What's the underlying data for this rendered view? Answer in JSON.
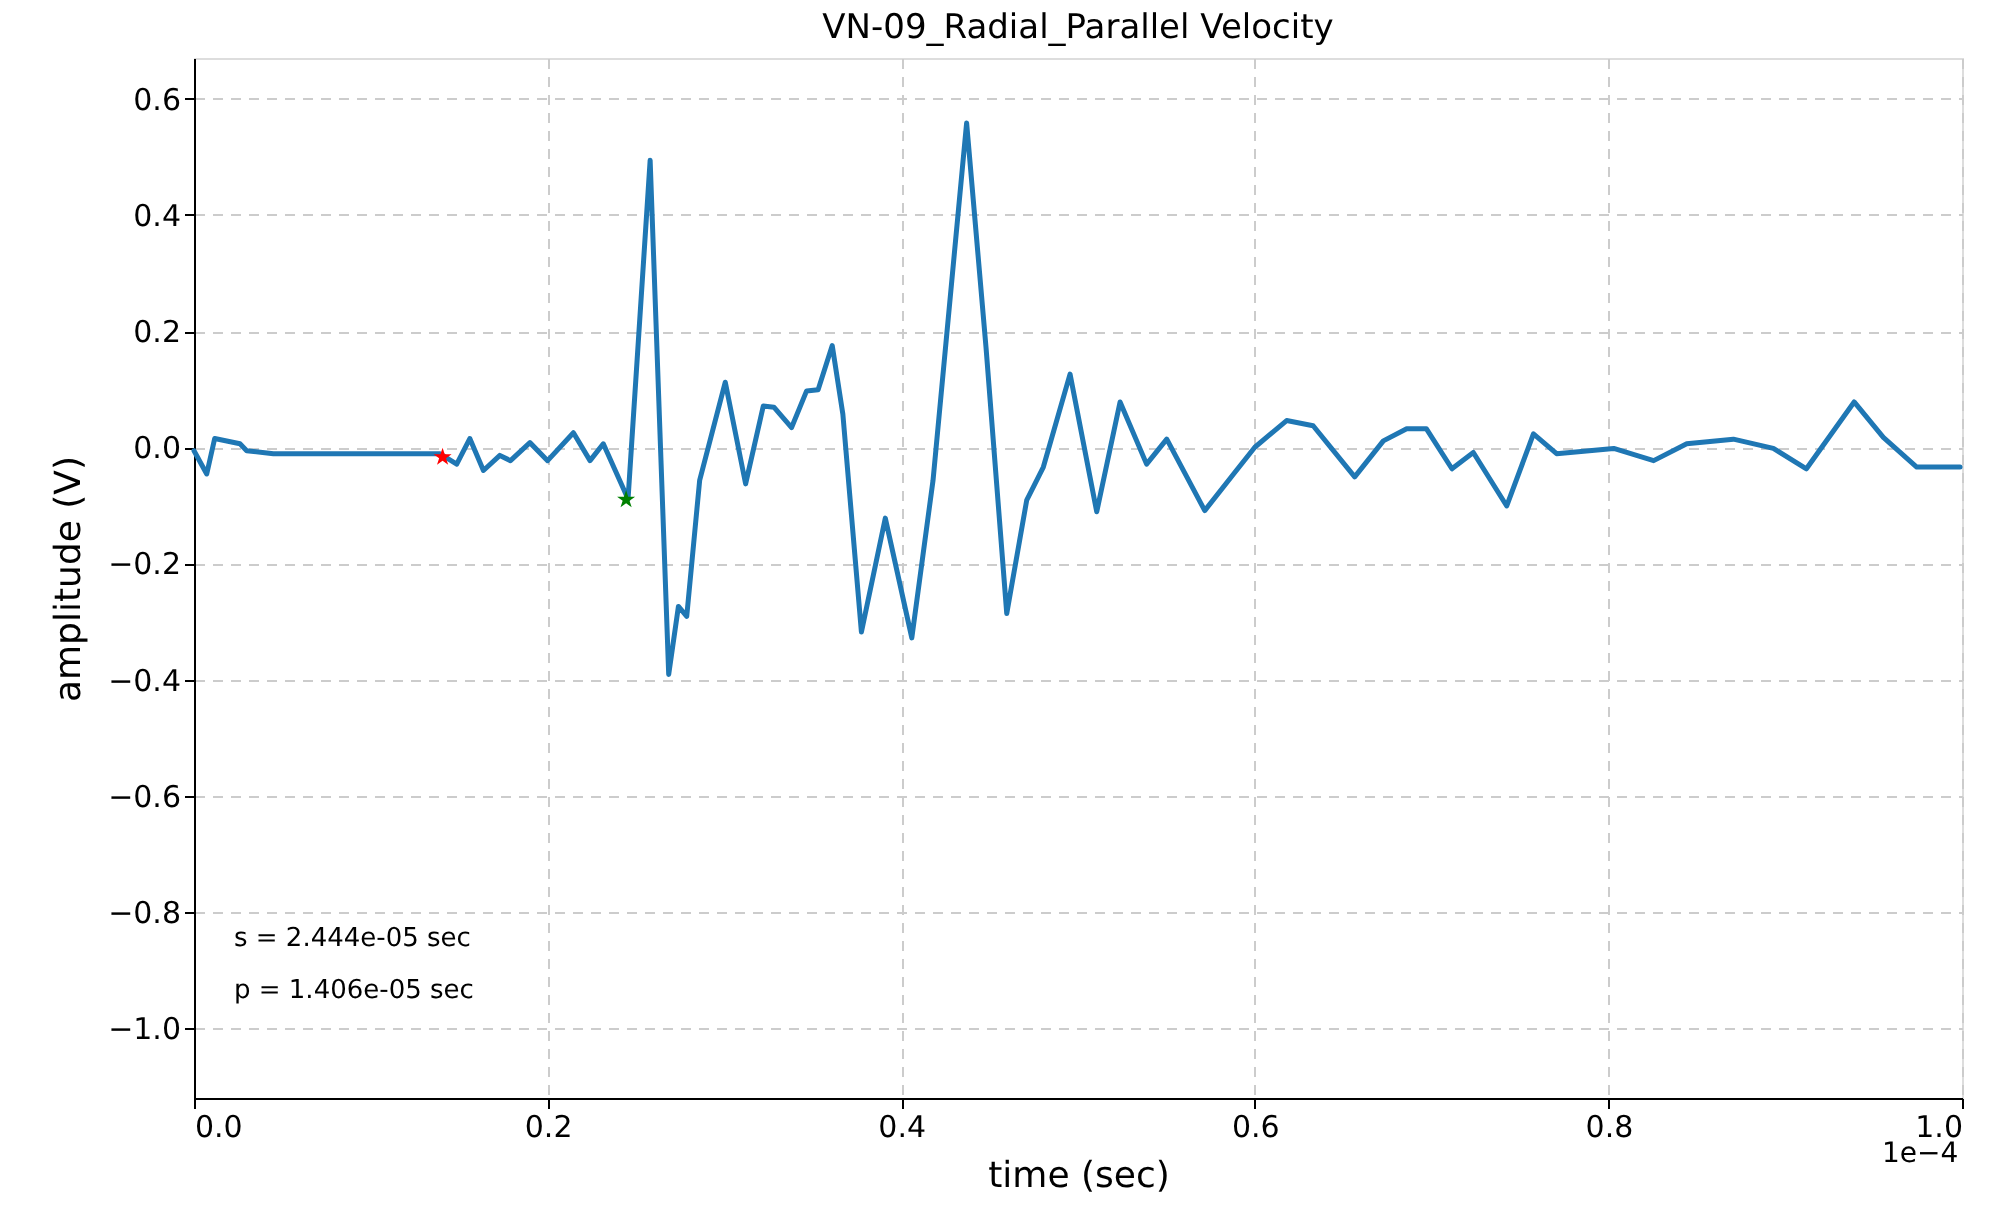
{
  "chart_data": {
    "type": "line",
    "title": "VN-09_Radial_Parallel Velocity",
    "xlabel": "time (sec)",
    "ylabel": "amplitude (V)",
    "xlim": [
      0,
      1.0
    ],
    "ylim": [
      -1.12,
      0.67
    ],
    "xticks": [
      {
        "value": 0,
        "label": "0.0"
      },
      {
        "value": 0.2,
        "label": "0.2"
      },
      {
        "value": 0.4,
        "label": "0.4"
      },
      {
        "value": 0.6,
        "label": "0.6"
      },
      {
        "value": 0.8,
        "label": "0.8"
      },
      {
        "value": 1.0,
        "label": "1.0"
      }
    ],
    "yticks": [
      {
        "value": -1.0,
        "label": "−1.0"
      },
      {
        "value": -0.8,
        "label": "−0.8"
      },
      {
        "value": -0.6,
        "label": "−0.6"
      },
      {
        "value": -0.4,
        "label": "−0.4"
      },
      {
        "value": -0.2,
        "label": "−0.2"
      },
      {
        "value": 0,
        "label": "0.0"
      },
      {
        "value": 0.2,
        "label": "0.2"
      },
      {
        "value": 0.4,
        "label": "0.4"
      },
      {
        "value": 0.6,
        "label": "0.6"
      }
    ],
    "grid": true,
    "annotations": [
      "s = 2.444e-05 sec",
      "p = 1.406e-05 sec",
      "1e−4"
    ],
    "series": [
      {
        "color": "#1f77b4",
        "line_style": "solid",
        "marker": "none",
        "x": [
          0.0,
          0.0072,
          0.0117,
          0.026,
          0.0298,
          0.0449,
          0.139,
          0.1486,
          0.156,
          0.1637,
          0.173,
          0.179,
          0.19,
          0.2,
          0.2146,
          0.224,
          0.2315,
          0.2455,
          0.258,
          0.2685,
          0.274,
          0.2787,
          0.286,
          0.3005,
          0.312,
          0.322,
          0.328,
          0.338,
          0.3465,
          0.353,
          0.361,
          0.367,
          0.3775,
          0.391,
          0.406,
          0.418,
          0.437,
          0.448,
          0.4597,
          0.471,
          0.4804,
          0.4955,
          0.5106,
          0.5238,
          0.5388,
          0.5502,
          0.5717,
          0.588,
          0.6,
          0.618,
          0.633,
          0.6565,
          0.6727,
          0.6859,
          0.697,
          0.7115,
          0.7236,
          0.7425,
          0.7576,
          0.7707,
          0.803,
          0.8256,
          0.8443,
          0.8707,
          0.8933,
          0.912,
          0.939,
          0.9555,
          0.9744,
          0.9989
        ],
        "values": [
          -0.006,
          -0.046,
          0.015,
          0.006,
          -0.006,
          -0.011,
          -0.011,
          -0.029,
          0.015,
          -0.04,
          -0.014,
          -0.023,
          0.008,
          -0.023,
          0.025,
          -0.023,
          0.006,
          -0.089,
          0.494,
          -0.391,
          -0.274,
          -0.291,
          -0.057,
          0.112,
          -0.063,
          0.071,
          0.069,
          0.034,
          0.097,
          0.099,
          0.175,
          0.057,
          -0.318,
          -0.122,
          -0.328,
          -0.057,
          0.558,
          0.171,
          -0.286,
          -0.091,
          -0.034,
          0.126,
          -0.111,
          0.078,
          -0.029,
          0.014,
          -0.109,
          -0.046,
          0.0,
          0.046,
          0.037,
          -0.051,
          0.011,
          0.032,
          0.032,
          -0.037,
          -0.009,
          -0.101,
          0.023,
          -0.011,
          -0.002,
          -0.023,
          0.006,
          0.014,
          -0.002,
          -0.037,
          0.078,
          0.017,
          -0.034,
          -0.034
        ]
      },
      {
        "type": "scatter",
        "color": "#ff0000",
        "marker": "star",
        "x": [
          0.1406
        ],
        "values": [
          -0.017
        ]
      },
      {
        "type": "scatter",
        "color": "#008000",
        "marker": "star",
        "x": [
          0.2444
        ],
        "values": [
          -0.09
        ]
      }
    ]
  }
}
